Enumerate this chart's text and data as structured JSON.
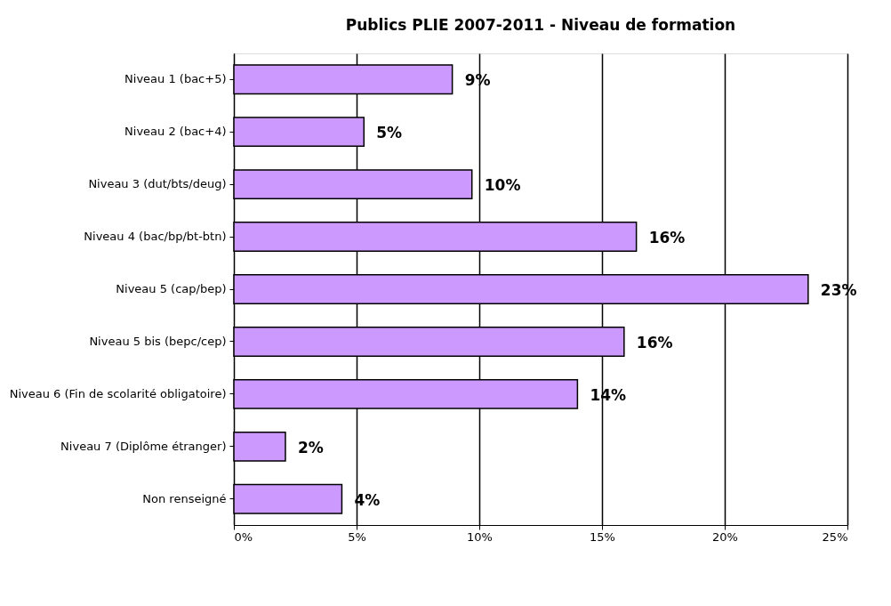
{
  "chart_data": {
    "type": "bar",
    "orientation": "horizontal",
    "title": "Publics PLIE 2007-2011 - Niveau de formation",
    "categories": [
      "Niveau 1 (bac+5)",
      "Niveau 2 (bac+4)",
      "Niveau 3 (dut/bts/deug)",
      "Niveau 4 (bac/bp/bt-btn)",
      "Niveau 5 (cap/bep)",
      "Niveau 5 bis (bepc/cep)",
      "Niveau 6 (Fin de scolarité obligatoire)",
      "Niveau 7 (Diplôme étranger)",
      "Non renseigné"
    ],
    "values": [
      8.9,
      5.3,
      9.7,
      16.4,
      23.4,
      15.9,
      14.0,
      2.1,
      4.4
    ],
    "value_labels": [
      "9%",
      "5%",
      "10%",
      "16%",
      "23%",
      "16%",
      "14%",
      "2%",
      "4%"
    ],
    "color": "#cc99ff",
    "xlim": [
      0,
      25
    ],
    "xticks": [
      {
        "value": 0,
        "label": "0%"
      },
      {
        "value": 5,
        "label": "5%"
      },
      {
        "value": 10,
        "label": "10%"
      },
      {
        "value": 15,
        "label": "15%"
      },
      {
        "value": 20,
        "label": "20%"
      },
      {
        "value": 25,
        "label": "25%"
      }
    ],
    "grid": "x"
  }
}
